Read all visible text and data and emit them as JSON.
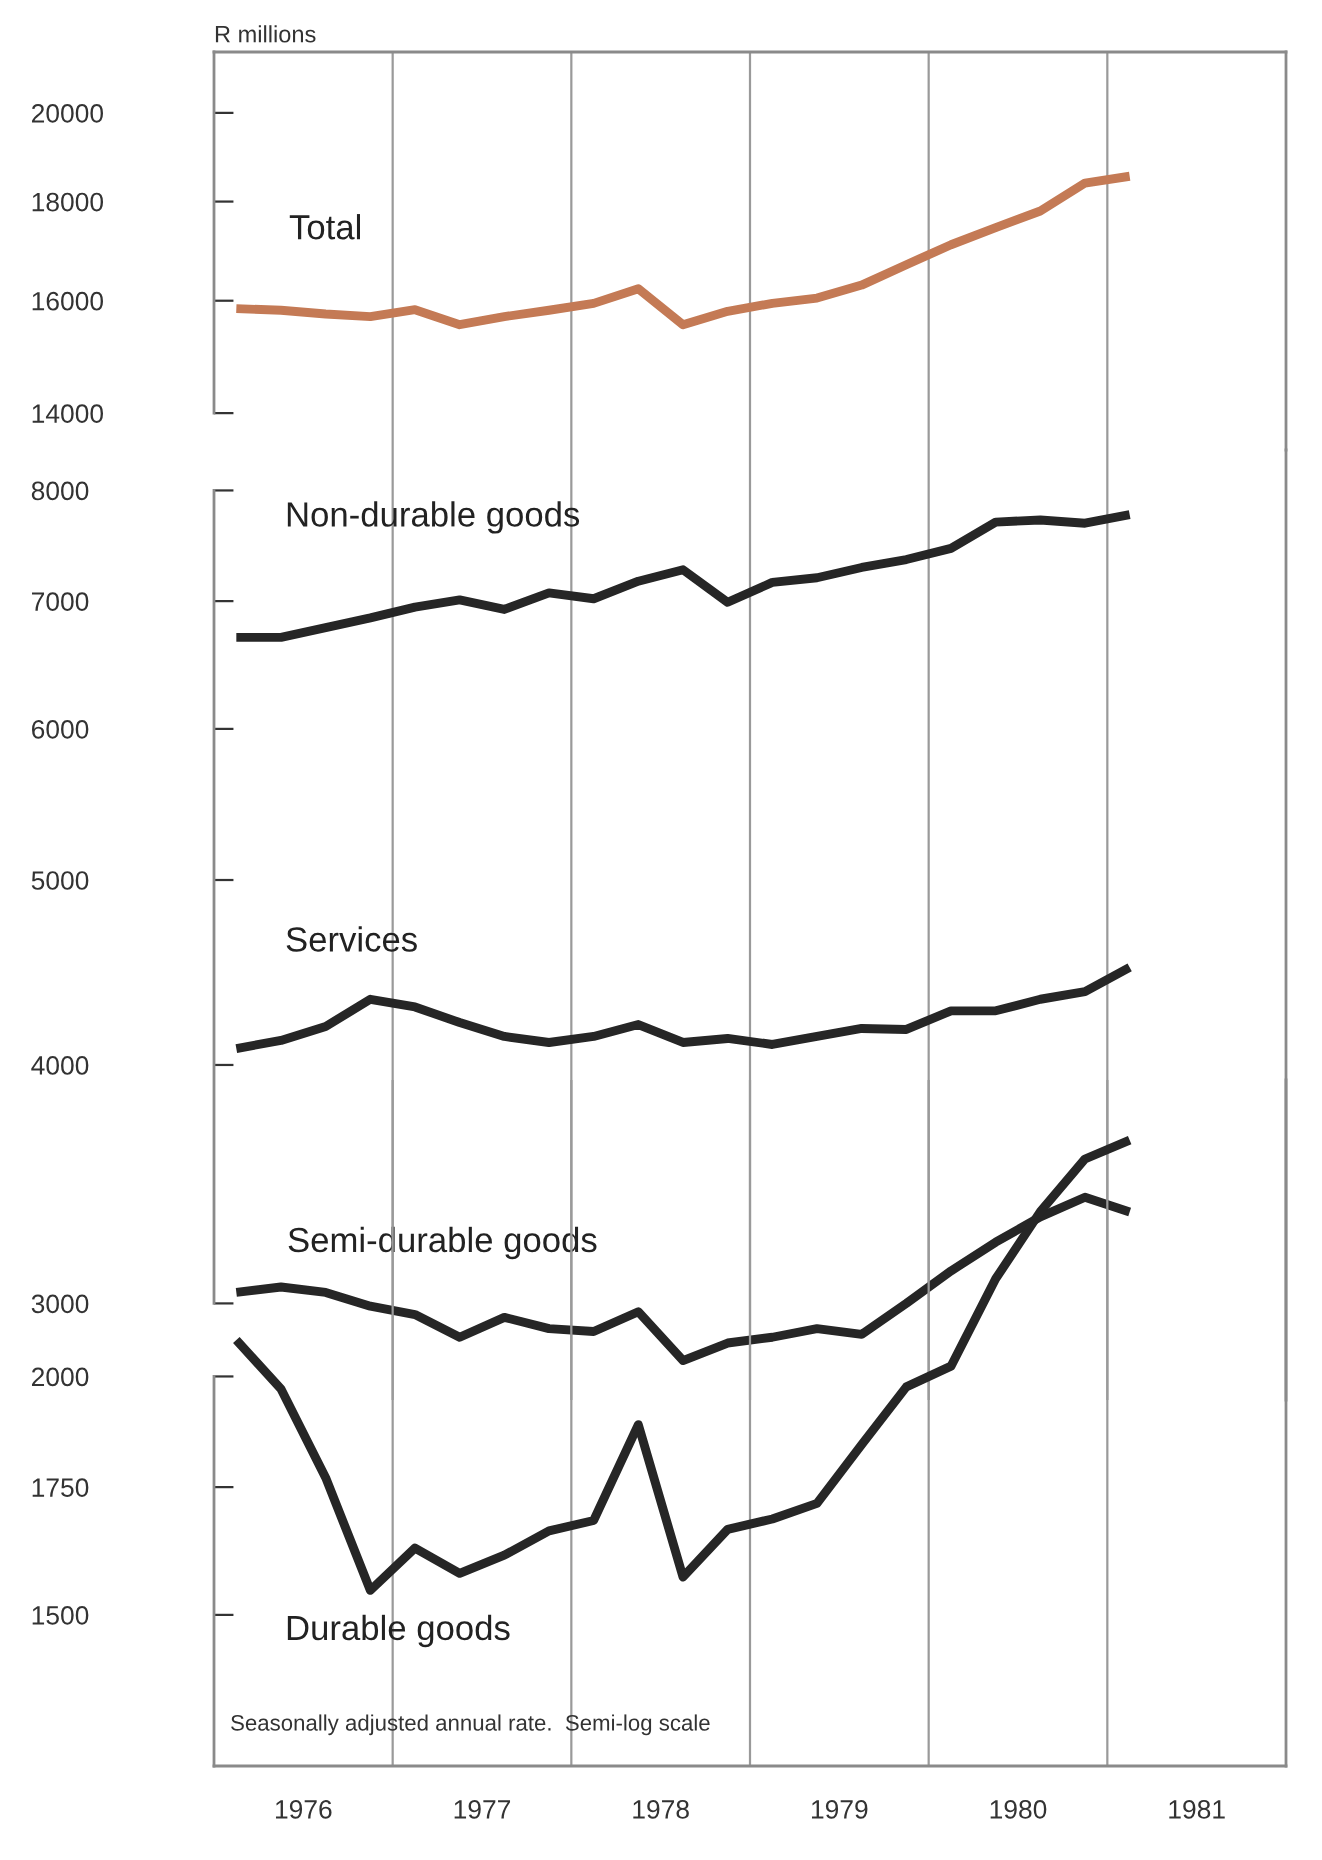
{
  "chart_data": [
    {
      "type": "line",
      "ylabel": "R millions",
      "log": "y",
      "xlim": [
        1976,
        1982
      ],
      "xticks": [
        {
          "value": 1977,
          "label": null
        },
        {
          "value": 1978,
          "label": null
        },
        {
          "value": 1979,
          "label": null
        },
        {
          "value": 1980,
          "label": null
        },
        {
          "value": 1981,
          "label": null
        }
      ],
      "ylim": [
        13400,
        21500
      ],
      "yticks": [
        14000,
        16000,
        18000,
        20000
      ],
      "grid": "x",
      "tick_labels": "y",
      "line_style": "solid",
      "marker": "none",
      "x": [
        1976.125,
        1976.375,
        1976.625,
        1976.875,
        1977.125,
        1977.375,
        1977.625,
        1977.875,
        1978.125,
        1978.375,
        1978.625,
        1978.875,
        1979.125,
        1979.375,
        1979.625,
        1979.875,
        1980.125,
        1980.375,
        1980.625,
        1980.875,
        1981.125
      ],
      "series": [
        {
          "name": "Total",
          "color": "#c47a55",
          "values": [
            15850,
            15820,
            15750,
            15700,
            15830,
            15550,
            15700,
            15820,
            15950,
            16230,
            15550,
            15800,
            15950,
            16050,
            16300,
            16700,
            17100,
            17450,
            17800,
            18400,
            18550
          ]
        }
      ]
    },
    {
      "type": "line",
      "log": "y",
      "xlim": [
        1976,
        1982
      ],
      "xticks": [
        {
          "value": 1977,
          "label": null
        },
        {
          "value": 1978,
          "label": null
        },
        {
          "value": 1979,
          "label": null
        },
        {
          "value": 1980,
          "label": null
        },
        {
          "value": 1981,
          "label": null
        }
      ],
      "ylim": [
        2670,
        8400
      ],
      "yticks": [
        3000,
        4000,
        5000,
        6000,
        7000,
        8000
      ],
      "grid": "x",
      "tick_labels": "y",
      "line_style": "solid",
      "marker": "none",
      "x": [
        1976.125,
        1976.375,
        1976.625,
        1976.875,
        1977.125,
        1977.375,
        1977.625,
        1977.875,
        1978.125,
        1978.375,
        1978.625,
        1978.875,
        1979.125,
        1979.375,
        1979.625,
        1979.875,
        1980.125,
        1980.375,
        1980.625,
        1980.875,
        1981.125
      ],
      "series": [
        {
          "name": "Non-durable goods",
          "color": "#262626",
          "values": [
            6700,
            6700,
            6780,
            6860,
            6950,
            7010,
            6930,
            7070,
            7020,
            7170,
            7270,
            6990,
            7160,
            7200,
            7290,
            7360,
            7460,
            7700,
            7720,
            7690,
            7770
          ]
        },
        {
          "name": "Services",
          "color": "#262626",
          "values": [
            4080,
            4120,
            4190,
            4330,
            4290,
            4210,
            4140,
            4110,
            4140,
            4200,
            4110,
            4130,
            4100,
            4140,
            4180,
            4175,
            4270,
            4270,
            4330,
            4370,
            4500
          ]
        },
        {
          "name": "Semi-durable goods",
          "color": "#262626",
          "values": [
            3040,
            3060,
            3040,
            2990,
            2960,
            2880,
            2950,
            2910,
            2900,
            2970,
            2800,
            2860,
            2880,
            2910,
            2890,
            3000,
            3120,
            3230,
            3330,
            3410,
            3350
          ]
        }
      ]
    },
    {
      "type": "line",
      "log": "y",
      "xlim": [
        1976,
        1982
      ],
      "xticks": [
        {
          "value": 1976.5,
          "label": "1976"
        },
        {
          "value": 1977,
          "label": null
        },
        {
          "value": 1977.5,
          "label": "1977"
        },
        {
          "value": 1978,
          "label": null
        },
        {
          "value": 1978.5,
          "label": "1978"
        },
        {
          "value": 1979,
          "label": null
        },
        {
          "value": 1979.5,
          "label": "1979"
        },
        {
          "value": 1980,
          "label": null
        },
        {
          "value": 1980.5,
          "label": "1980"
        },
        {
          "value": 1981,
          "label": null
        },
        {
          "value": 1981.5,
          "label": "1981"
        }
      ],
      "ylim": [
        1250,
        2860
      ],
      "yticks": [
        1500,
        1750,
        2000
      ],
      "grid": "x",
      "line_style": "solid",
      "marker": "none",
      "annotations": [
        "Seasonally adjusted annual rate.  Semi-log scale"
      ],
      "x": [
        1976.125,
        1976.375,
        1976.625,
        1976.875,
        1977.125,
        1977.375,
        1977.625,
        1977.875,
        1978.125,
        1978.375,
        1978.625,
        1978.875,
        1979.125,
        1979.375,
        1979.625,
        1979.875,
        1980.125,
        1980.375,
        1980.625,
        1980.875,
        1981.125
      ],
      "series": [
        {
          "name": "Durable goods",
          "color": "#262626",
          "values": [
            2090,
            1970,
            1770,
            1545,
            1626,
            1577,
            1612,
            1660,
            1681,
            1887,
            1570,
            1663,
            1684,
            1716,
            1842,
            1975,
            2025,
            2250,
            2440,
            2600,
            2660
          ]
        }
      ]
    }
  ]
}
